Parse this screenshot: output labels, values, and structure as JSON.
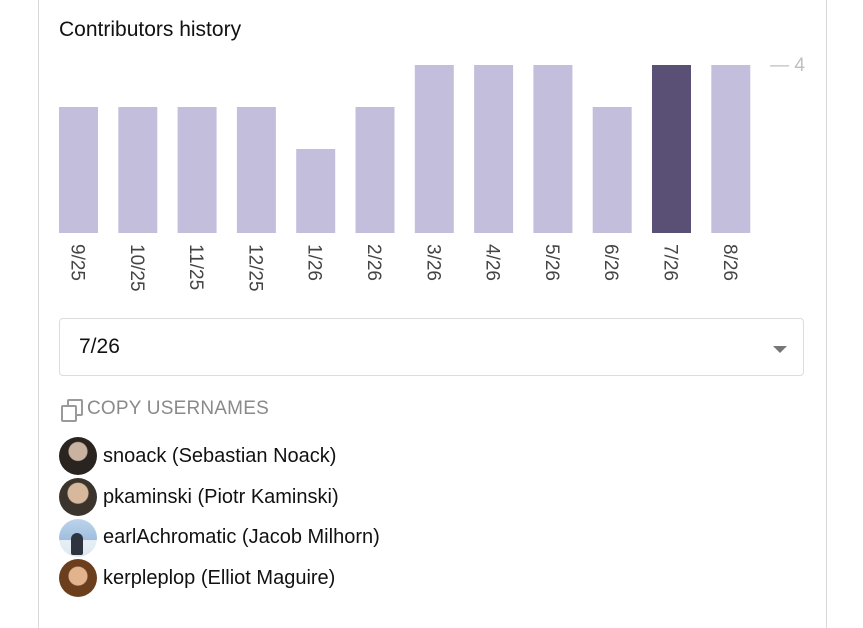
{
  "colors": {
    "bar": "#c4bedd",
    "bar_selected": "#5a4f75"
  },
  "chart_data": {
    "type": "bar",
    "title": "Contributors history",
    "categories": [
      "9/25",
      "10/25",
      "11/25",
      "12/25",
      "1/26",
      "2/26",
      "3/26",
      "4/26",
      "5/26",
      "6/26",
      "7/26",
      "8/26"
    ],
    "values": [
      3,
      3,
      3,
      3,
      2,
      3,
      4,
      4,
      4,
      3,
      4,
      4
    ],
    "ylim": [
      0,
      4
    ],
    "max_label": "— 4",
    "selected": "7/26",
    "xlabel": "",
    "ylabel": "",
    "grid": false,
    "legend": "none"
  },
  "selector": {
    "value": "7/26"
  },
  "copy": {
    "label": "COPY USERNAMES",
    "icon": "copy-icon"
  },
  "users": [
    {
      "text": "snoack (Sebastian Noack)"
    },
    {
      "text": "pkaminski (Piotr Kaminski)"
    },
    {
      "text": "earlAchromatic (Jacob Milhorn)"
    },
    {
      "text": "kerpleplop (Elliot Maguire)"
    }
  ]
}
